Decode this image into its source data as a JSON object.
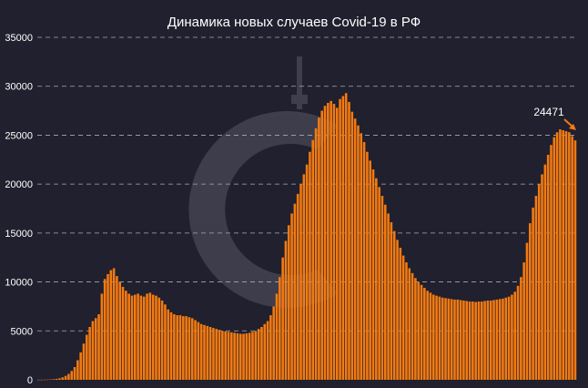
{
  "colors": {
    "background": "#20202e",
    "bar": "#f47a10",
    "grid": "#a9a9b5",
    "text": "#ffffff"
  },
  "chart_data": {
    "type": "bar",
    "title": "Динамика новых случаев Covid-19 в РФ",
    "xlabel": "",
    "ylabel": "",
    "ylim": [
      0,
      35000
    ],
    "yticks": [
      0,
      5000,
      10000,
      15000,
      20000,
      25000,
      30000,
      35000
    ],
    "grid": true,
    "annotation": {
      "text": "24471",
      "value": 24471,
      "arrow": true
    },
    "values": [
      10,
      15,
      20,
      30,
      45,
      70,
      100,
      150,
      250,
      400,
      600,
      900,
      1300,
      2000,
      2800,
      3700,
      4600,
      5400,
      6000,
      6300,
      6700,
      8800,
      10300,
      10800,
      11200,
      11400,
      10600,
      10000,
      9500,
      9100,
      8800,
      8600,
      8700,
      8800,
      8600,
      8500,
      8800,
      8900,
      8700,
      8600,
      8400,
      8100,
      7700,
      7200,
      6900,
      6700,
      6600,
      6600,
      6500,
      6500,
      6400,
      6300,
      6100,
      5900,
      5700,
      5600,
      5500,
      5400,
      5300,
      5200,
      5100,
      5000,
      4950,
      4900,
      4850,
      4800,
      4750,
      4700,
      4700,
      4750,
      4800,
      4900,
      5000,
      5200,
      5400,
      5700,
      6000,
      6600,
      7500,
      8800,
      10500,
      12500,
      14200,
      15800,
      17000,
      18000,
      19000,
      20000,
      21000,
      22000,
      23300,
      24500,
      25700,
      26800,
      27500,
      28000,
      28300,
      28500,
      28200,
      27800,
      28700,
      29000,
      29300,
      28400,
      27400,
      26700,
      26000,
      25200,
      24300,
      23300,
      22400,
      21500,
      20600,
      19700,
      18800,
      17900,
      17000,
      16100,
      15200,
      14300,
      13500,
      12700,
      12000,
      11400,
      10900,
      10400,
      10000,
      9700,
      9400,
      9100,
      8900,
      8700,
      8600,
      8500,
      8400,
      8350,
      8300,
      8250,
      8200,
      8200,
      8150,
      8100,
      8050,
      8000,
      8000,
      7950,
      8000,
      8000,
      8050,
      8100,
      8100,
      8150,
      8200,
      8250,
      8300,
      8400,
      8500,
      8700,
      9000,
      9600,
      10500,
      12000,
      14000,
      16000,
      17600,
      18800,
      20000,
      21000,
      22000,
      23000,
      24000,
      24800,
      25300,
      25600,
      25500,
      25400,
      25300,
      24900,
      24471
    ]
  }
}
